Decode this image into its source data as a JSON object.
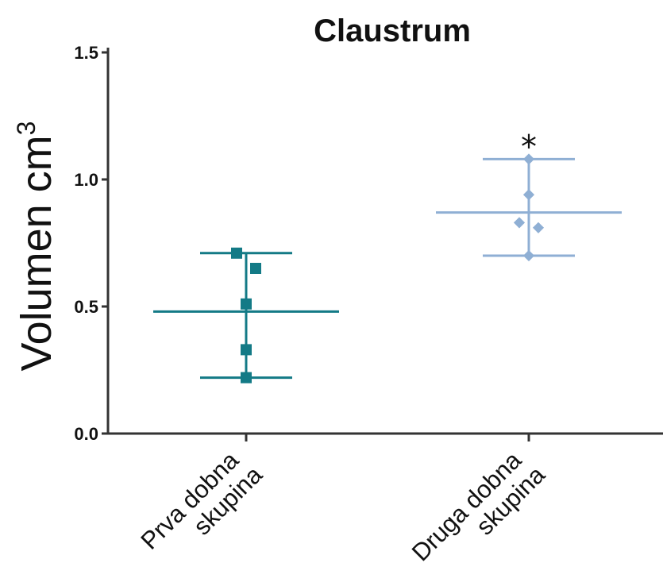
{
  "chart_data": {
    "type": "scatter",
    "title": "Claustrum",
    "ylabel": "Volumen cm",
    "ylabel_sup": "3",
    "xlabel": "",
    "ylim": [
      0,
      1.5
    ],
    "yticks": [
      "0.0",
      "0.5",
      "1.0",
      "1.5"
    ],
    "categories": [
      [
        "Prva dobna",
        "skupina"
      ],
      [
        "Druga dobna",
        "skupina"
      ]
    ],
    "series": [
      {
        "category_index": 0,
        "marker": "square",
        "color": "#137a86",
        "points": [
          0.71,
          0.65,
          0.51,
          0.33,
          0.22
        ],
        "mean": 0.48,
        "sd_low": 0.22,
        "sd_high": 0.71
      },
      {
        "category_index": 1,
        "marker": "diamond",
        "color": "#8fafd4",
        "points": [
          1.08,
          0.94,
          0.83,
          0.81,
          0.7
        ],
        "mean": 0.87,
        "sd_low": 0.7,
        "sd_high": 1.08
      }
    ],
    "annotations": [
      {
        "text": "*",
        "category_index": 1
      }
    ],
    "grid": false,
    "legend": "none"
  }
}
